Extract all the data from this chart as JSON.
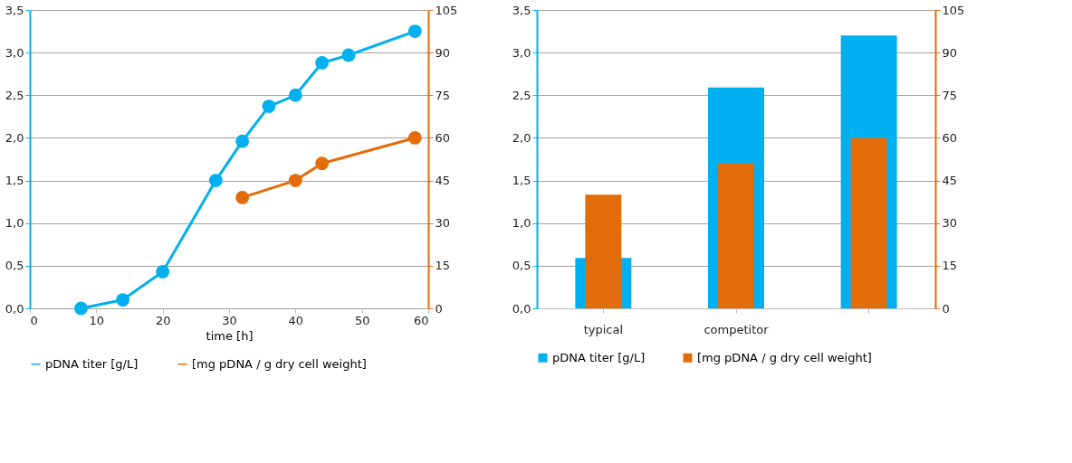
{
  "chart_data": [
    {
      "type": "line",
      "xlabel": "time [h]",
      "xlim": [
        0,
        60
      ],
      "xticks": [
        0,
        10,
        20,
        30,
        40,
        50,
        60
      ],
      "ylim": [
        0,
        3.5
      ],
      "yticks": [
        {
          "value": 0,
          "label": "0,0"
        },
        {
          "value": 0.5,
          "label": "0,5"
        },
        {
          "value": 1,
          "label": "1,0"
        },
        {
          "value": 1.5,
          "label": "1,5"
        },
        {
          "value": 2,
          "label": "2,0"
        },
        {
          "value": 2.5,
          "label": "2,5"
        },
        {
          "value": 3,
          "label": "3,0"
        },
        {
          "value": 3.5,
          "label": "3,5"
        }
      ],
      "y2lim": [
        0,
        105
      ],
      "y2ticks": [
        0,
        15,
        30,
        45,
        60,
        75,
        90,
        105
      ],
      "grid": "y",
      "legend": "bottom",
      "marker": "circle",
      "line_style": "solid",
      "series": [
        {
          "name": "pDNA titer [g/L]",
          "color": "#00b0f0",
          "x": [
            7.7,
            14,
            20,
            28,
            32,
            36,
            40,
            44,
            48,
            58
          ],
          "values": [
            0,
            0.1,
            0.43,
            1.5,
            1.96,
            2.37,
            2.5,
            2.88,
            2.97,
            3.25
          ]
        },
        {
          "name": "[mg pDNA / g dry cell weight]",
          "color": "#e36c0a",
          "axis": "y2",
          "x": [
            32,
            40,
            44,
            58
          ],
          "values": [
            39,
            45,
            51,
            60
          ]
        }
      ]
    },
    {
      "type": "bar",
      "categories": [
        "typical",
        "competitor",
        null
      ],
      "ylim": [
        0,
        3.5
      ],
      "yticks": [
        {
          "value": 0,
          "label": "0,0"
        },
        {
          "value": 0.5,
          "label": "0,5"
        },
        {
          "value": 1,
          "label": "1,0"
        },
        {
          "value": 1.5,
          "label": "1,5"
        },
        {
          "value": 2,
          "label": "2,0"
        },
        {
          "value": 2.5,
          "label": "2,5"
        },
        {
          "value": 3,
          "label": "3,0"
        },
        {
          "value": 3.5,
          "label": "3,5"
        }
      ],
      "y2lim": [
        0,
        105
      ],
      "y2ticks": [
        0,
        15,
        30,
        45,
        60,
        75,
        90,
        105
      ],
      "grid": "y",
      "legend": "bottom",
      "series": [
        {
          "name": "pDNA titer [g/L]",
          "color": "#00b0f0",
          "values": [
            0.59,
            2.59,
            3.2
          ]
        },
        {
          "name": "[mg pDNA / g dry cell weight]",
          "color": "#e36c0a",
          "axis": "y2",
          "values": [
            40,
            51,
            60
          ]
        }
      ]
    }
  ]
}
